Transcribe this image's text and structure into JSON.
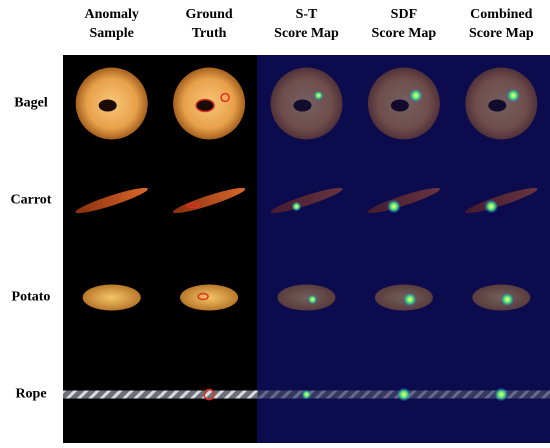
{
  "columns": [
    [
      "Anomaly",
      "Sample"
    ],
    [
      "Ground",
      "Truth"
    ],
    [
      "S-T",
      "Score Map"
    ],
    [
      "SDF",
      "Score Map"
    ],
    [
      "Combined",
      "Score Map"
    ]
  ],
  "rows": [
    "Bagel",
    "Carrot",
    "Potato",
    "Rope"
  ]
}
